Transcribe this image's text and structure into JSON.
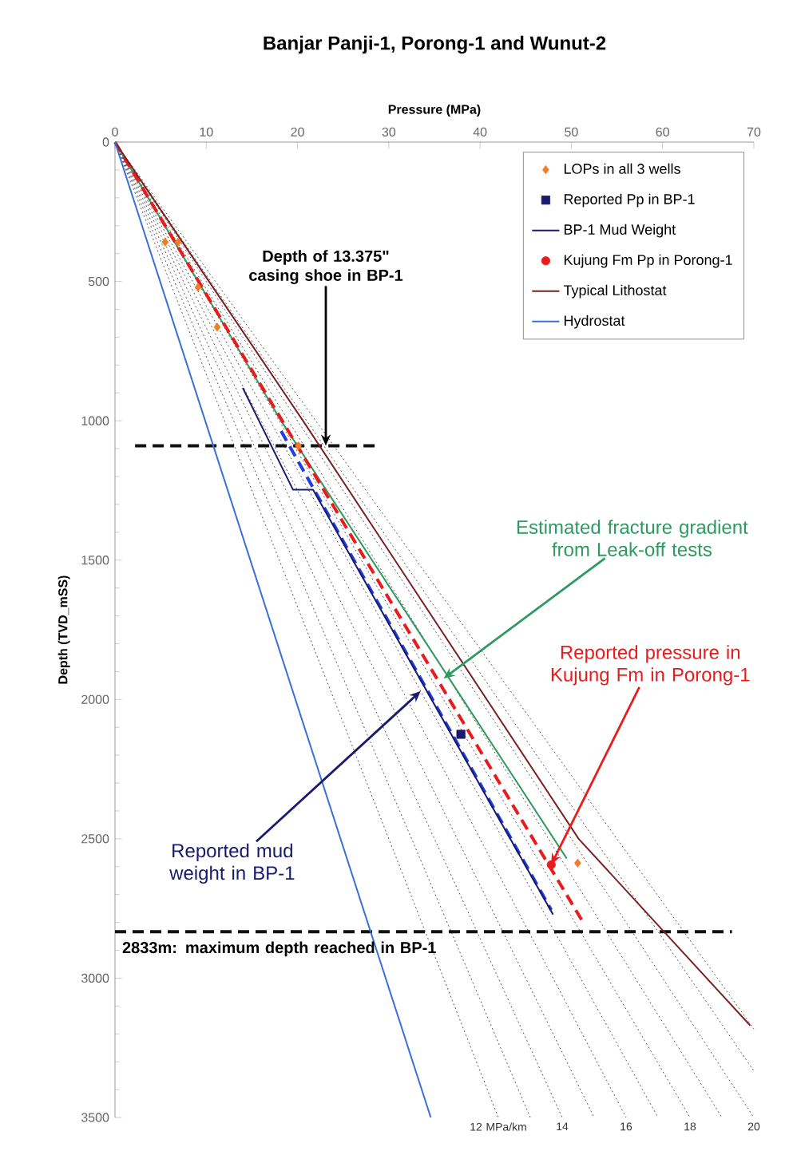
{
  "chart_data": {
    "type": "line",
    "title": "Banjar Panji-1, Porong-1 and Wunut-2",
    "xlabel": "Pressure (MPa)",
    "ylabel": "Depth (TVD_mSS)",
    "xlim": [
      0,
      70
    ],
    "xticks": [
      0,
      10,
      20,
      30,
      40,
      50,
      60,
      70
    ],
    "ylim": [
      3500,
      0
    ],
    "yticks": [
      0,
      500,
      1000,
      1500,
      2000,
      2500,
      3000,
      3500
    ],
    "grid": false,
    "legend": "top right",
    "series": [
      {
        "color": "#555555",
        "line_style": "dotted",
        "x": [
          0,
          42
        ],
        "values": [
          0,
          3500
        ]
      },
      {
        "color": "#555555",
        "line_style": "dotted",
        "x": [
          0,
          45.5
        ],
        "values": [
          0,
          3500
        ]
      },
      {
        "type": "line",
        "color": "#555555",
        "line_style": "dotted",
        "x": [
          0,
          49
        ],
        "values": [
          0,
          3500
        ]
      },
      {
        "type": "line",
        "color": "#555555",
        "line_style": "dotted",
        "x": [
          0,
          52.5
        ],
        "values": [
          0,
          3500
        ]
      },
      {
        "type": "line",
        "color": "#555555",
        "line_style": "dotted",
        "x": [
          0,
          56
        ],
        "values": [
          0,
          3500
        ]
      },
      {
        "type": "line",
        "color": "#555555",
        "line_style": "dotted",
        "x": [
          0,
          59.5
        ],
        "values": [
          0,
          3500
        ]
      },
      {
        "type": "line",
        "color": "#555555",
        "line_style": "dotted",
        "x": [
          0,
          63
        ],
        "values": [
          0,
          3500
        ]
      },
      {
        "type": "line",
        "color": "#555555",
        "line_style": "dotted",
        "x": [
          0,
          66.5
        ],
        "values": [
          0,
          3500
        ]
      },
      {
        "type": "line",
        "color": "#555555",
        "line_style": "dotted",
        "x": [
          0,
          70
        ],
        "values": [
          0,
          3500
        ]
      },
      {
        "type": "line",
        "color": "#555555",
        "line_style": "dotted",
        "x": [
          0,
          70
        ],
        "values": [
          0,
          3333
        ]
      },
      {
        "type": "line",
        "color": "#555555",
        "line_style": "dotted",
        "x": [
          0,
          70
        ],
        "values": [
          0,
          3182
        ]
      },
      {
        "type": "line",
        "color": "#111111",
        "line_style": "dashed",
        "x": [
          2.2,
          29.1
        ],
        "values": [
          1090,
          1090
        ]
      },
      {
        "type": "line",
        "color": "#111111",
        "line_style": "dashed",
        "x": [
          0,
          67.6
        ],
        "values": [
          2833,
          2833
        ]
      },
      {
        "color": "#2e9a60",
        "line_style": "solid",
        "x": [
          0,
          18.2,
          49.5
        ],
        "values": [
          0,
          1000,
          2571
        ]
      },
      {
        "type": "line",
        "color": "#e81c1c",
        "line_style": "dashed",
        "x": [
          0,
          51.3
        ],
        "values": [
          0,
          2800
        ]
      },
      {
        "type": "line",
        "color": "#1f3fe0",
        "line_style": "dashed",
        "x": [
          18.2,
          47.8
        ],
        "values": [
          1037,
          2755
        ]
      },
      {
        "name": "LOPs in all 3 wells",
        "type": "scatter",
        "marker": "diamond",
        "color": "#f07c24",
        "x": [
          5.5,
          6.9,
          9.1,
          11.2,
          20.1,
          50.7
        ],
        "values": [
          359,
          359,
          521,
          664,
          1090,
          2587
        ]
      },
      {
        "name": "Reported Pp in BP-1",
        "type": "scatter",
        "marker": "square",
        "color": "#1a1a6e",
        "x": [
          37.9
        ],
        "values": [
          2125
        ]
      },
      {
        "name": "BP-1 Mud Weight",
        "type": "line",
        "color": "#1a1a6e",
        "line_style": "solid",
        "x": [
          14.0,
          19.5,
          21.7,
          48.0
        ],
        "values": [
          882,
          1247,
          1247,
          2772
        ]
      },
      {
        "name": "Kujung Fm Pp in Porong-1",
        "type": "scatter",
        "marker": "circle",
        "color": "#e81c1c",
        "x": [
          47.8
        ],
        "values": [
          2593
        ]
      },
      {
        "name": "Typical Lithostat",
        "type": "line",
        "color": "#7a2020",
        "line_style": "solid",
        "x": [
          0,
          20.6,
          50.8,
          69.6
        ],
        "values": [
          0,
          1000,
          2500,
          3170
        ]
      },
      {
        "name": "Hydrostat",
        "color": "#3a6fd8",
        "line_style": "solid",
        "x": [
          0,
          34.6
        ],
        "values": [
          0,
          3500
        ]
      }
    ],
    "annotations": [
      {
        "text": "Depth of 13.375\" casing shoe in BP-1",
        "x": 23.1,
        "y": 1090
      },
      {
        "text": "Estimated fracture gradient from Leak-off tests",
        "x": 36.0,
        "y": 1925
      },
      {
        "text": "Reported pressure in Kujung Fm in Porong-1",
        "x": 47.8,
        "y": 2593
      },
      {
        "text": "Reported mud weight in BP-1",
        "x": 33.5,
        "y": 1970
      },
      {
        "text": "2833m: maximum depth reached in BP-1",
        "x": 18,
        "y": 2833
      },
      {
        "text": "12 MPa/km",
        "x": 42,
        "y": 3500
      },
      {
        "text": "14",
        "x": 49,
        "y": 3500
      },
      {
        "text": "16",
        "x": 56,
        "y": 3500
      },
      {
        "text": "18",
        "x": 63,
        "y": 3500
      },
      {
        "text": "20",
        "x": 70,
        "y": 3500
      }
    ]
  }
}
